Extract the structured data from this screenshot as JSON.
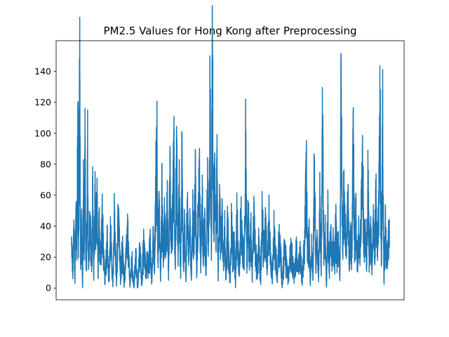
{
  "chart_data": {
    "type": "line",
    "title": "PM2.5 Values for Hong Kong after Preprocessing",
    "xlabel": "",
    "ylabel": "",
    "x_ticks_visible": false,
    "ylim": [
      -7.6,
      159.8
    ],
    "y_ticks": [
      0,
      20,
      40,
      60,
      80,
      100,
      120,
      140
    ],
    "grid": false,
    "series": [
      {
        "color": "#1f77b4",
        "approx_points": 4000,
        "anchors": [
          [
            0.0,
            27
          ],
          [
            0.004,
            10
          ],
          [
            0.007,
            44
          ],
          [
            0.01,
            3
          ],
          [
            0.013,
            53
          ],
          [
            0.016,
            18
          ],
          [
            0.019,
            118
          ],
          [
            0.021,
            24
          ],
          [
            0.024,
            144
          ],
          [
            0.027,
            12
          ],
          [
            0.03,
            42
          ],
          [
            0.033,
            2
          ],
          [
            0.036,
            65
          ],
          [
            0.038,
            18
          ],
          [
            0.04,
            84
          ],
          [
            0.043,
            22
          ],
          [
            0.045,
            25
          ],
          [
            0.048,
            82
          ],
          [
            0.051,
            12
          ],
          [
            0.055,
            40
          ],
          [
            0.058,
            28
          ],
          [
            0.061,
            18
          ],
          [
            0.063,
            63
          ],
          [
            0.066,
            8
          ],
          [
            0.07,
            52
          ],
          [
            0.073,
            30
          ],
          [
            0.076,
            58
          ],
          [
            0.079,
            10
          ],
          [
            0.083,
            42
          ],
          [
            0.087,
            20
          ],
          [
            0.092,
            49
          ],
          [
            0.096,
            20
          ],
          [
            0.1,
            6
          ],
          [
            0.106,
            30
          ],
          [
            0.111,
            4
          ],
          [
            0.117,
            36
          ],
          [
            0.123,
            2
          ],
          [
            0.128,
            42
          ],
          [
            0.134,
            3
          ],
          [
            0.14,
            49
          ],
          [
            0.146,
            8
          ],
          [
            0.152,
            25
          ],
          [
            0.157,
            3
          ],
          [
            0.163,
            22
          ],
          [
            0.168,
            34
          ],
          [
            0.174,
            2
          ],
          [
            0.18,
            18
          ],
          [
            0.186,
            1
          ],
          [
            0.192,
            18
          ],
          [
            0.198,
            1
          ],
          [
            0.204,
            24
          ],
          [
            0.21,
            4
          ],
          [
            0.216,
            28
          ],
          [
            0.222,
            9
          ],
          [
            0.226,
            18
          ],
          [
            0.23,
            14
          ],
          [
            0.235,
            28
          ],
          [
            0.24,
            5
          ],
          [
            0.245,
            35
          ],
          [
            0.248,
            14
          ],
          [
            0.252,
            64
          ],
          [
            0.255,
            95
          ],
          [
            0.258,
            20
          ],
          [
            0.262,
            48
          ],
          [
            0.266,
            8
          ],
          [
            0.27,
            58
          ],
          [
            0.274,
            18
          ],
          [
            0.278,
            40
          ],
          [
            0.282,
            25
          ],
          [
            0.286,
            55
          ],
          [
            0.29,
            5
          ],
          [
            0.294,
            70
          ],
          [
            0.298,
            30
          ],
          [
            0.302,
            44
          ],
          [
            0.306,
            80
          ],
          [
            0.31,
            12
          ],
          [
            0.314,
            83
          ],
          [
            0.318,
            25
          ],
          [
            0.322,
            58
          ],
          [
            0.326,
            8
          ],
          [
            0.33,
            79
          ],
          [
            0.334,
            15
          ],
          [
            0.338,
            42
          ],
          [
            0.342,
            6
          ],
          [
            0.346,
            56
          ],
          [
            0.35,
            22
          ],
          [
            0.354,
            38
          ],
          [
            0.358,
            5
          ],
          [
            0.362,
            48
          ],
          [
            0.366,
            30
          ],
          [
            0.37,
            68
          ],
          [
            0.374,
            10
          ],
          [
            0.378,
            45
          ],
          [
            0.382,
            76
          ],
          [
            0.386,
            15
          ],
          [
            0.39,
            58
          ],
          [
            0.394,
            22
          ],
          [
            0.398,
            40
          ],
          [
            0.402,
            8
          ],
          [
            0.406,
            60
          ],
          [
            0.41,
            30
          ],
          [
            0.414,
            119
          ],
          [
            0.418,
            20
          ],
          [
            0.421,
            152
          ],
          [
            0.424,
            40
          ],
          [
            0.428,
            63
          ],
          [
            0.431,
            35
          ],
          [
            0.435,
            71
          ],
          [
            0.438,
            10
          ],
          [
            0.442,
            52
          ],
          [
            0.446,
            27
          ],
          [
            0.45,
            45
          ],
          [
            0.454,
            20
          ],
          [
            0.458,
            35
          ],
          [
            0.462,
            6
          ],
          [
            0.466,
            40
          ],
          [
            0.47,
            18
          ],
          [
            0.474,
            5
          ],
          [
            0.478,
            42
          ],
          [
            0.482,
            20
          ],
          [
            0.486,
            30
          ],
          [
            0.49,
            3
          ],
          [
            0.494,
            45
          ],
          [
            0.498,
            20
          ],
          [
            0.502,
            12
          ],
          [
            0.506,
            44
          ],
          [
            0.51,
            30
          ],
          [
            0.514,
            18
          ],
          [
            0.518,
            36
          ],
          [
            0.521,
            102
          ],
          [
            0.524,
            15
          ],
          [
            0.528,
            48
          ],
          [
            0.532,
            18
          ],
          [
            0.536,
            34
          ],
          [
            0.54,
            10
          ],
          [
            0.545,
            43
          ],
          [
            0.55,
            24
          ],
          [
            0.555,
            10
          ],
          [
            0.56,
            30
          ],
          [
            0.565,
            4
          ],
          [
            0.57,
            46
          ],
          [
            0.575,
            20
          ],
          [
            0.58,
            38
          ],
          [
            0.585,
            12
          ],
          [
            0.59,
            45
          ],
          [
            0.595,
            18
          ],
          [
            0.6,
            8
          ],
          [
            0.605,
            34
          ],
          [
            0.61,
            22
          ],
          [
            0.615,
            6
          ],
          [
            0.62,
            30
          ],
          [
            0.625,
            20
          ],
          [
            0.63,
            4
          ],
          [
            0.636,
            25
          ],
          [
            0.642,
            15
          ],
          [
            0.648,
            6
          ],
          [
            0.654,
            25
          ],
          [
            0.66,
            18
          ],
          [
            0.666,
            8
          ],
          [
            0.672,
            24
          ],
          [
            0.678,
            12
          ],
          [
            0.684,
            20
          ],
          [
            0.69,
            5
          ],
          [
            0.696,
            26
          ],
          [
            0.702,
            72
          ],
          [
            0.706,
            18
          ],
          [
            0.71,
            34
          ],
          [
            0.714,
            4
          ],
          [
            0.718,
            24
          ],
          [
            0.722,
            10
          ],
          [
            0.726,
            85
          ],
          [
            0.73,
            12
          ],
          [
            0.734,
            30
          ],
          [
            0.738,
            4
          ],
          [
            0.742,
            55
          ],
          [
            0.746,
            12
          ],
          [
            0.75,
            109
          ],
          [
            0.754,
            20
          ],
          [
            0.758,
            34
          ],
          [
            0.762,
            2
          ],
          [
            0.766,
            44
          ],
          [
            0.77,
            10
          ],
          [
            0.774,
            36
          ],
          [
            0.778,
            22
          ],
          [
            0.782,
            30
          ],
          [
            0.786,
            14
          ],
          [
            0.79,
            40
          ],
          [
            0.794,
            20
          ],
          [
            0.798,
            28
          ],
          [
            0.802,
            8
          ],
          [
            0.806,
            129
          ],
          [
            0.81,
            30
          ],
          [
            0.814,
            58
          ],
          [
            0.818,
            40
          ],
          [
            0.822,
            22
          ],
          [
            0.826,
            55
          ],
          [
            0.83,
            15
          ],
          [
            0.834,
            32
          ],
          [
            0.838,
            20
          ],
          [
            0.842,
            92
          ],
          [
            0.846,
            28
          ],
          [
            0.85,
            45
          ],
          [
            0.854,
            15
          ],
          [
            0.858,
            33
          ],
          [
            0.862,
            20
          ],
          [
            0.866,
            48
          ],
          [
            0.87,
            81
          ],
          [
            0.874,
            24
          ],
          [
            0.878,
            38
          ],
          [
            0.882,
            12
          ],
          [
            0.886,
            64
          ],
          [
            0.89,
            20
          ],
          [
            0.894,
            34
          ],
          [
            0.898,
            15
          ],
          [
            0.902,
            39
          ],
          [
            0.906,
            25
          ],
          [
            0.91,
            56
          ],
          [
            0.914,
            22
          ],
          [
            0.918,
            44
          ],
          [
            0.922,
            108
          ],
          [
            0.926,
            15
          ],
          [
            0.93,
            98
          ],
          [
            0.934,
            3
          ],
          [
            0.938,
            36
          ],
          [
            0.942,
            18
          ],
          [
            0.946,
            30
          ],
          [
            0.95,
            34
          ]
        ]
      }
    ]
  }
}
